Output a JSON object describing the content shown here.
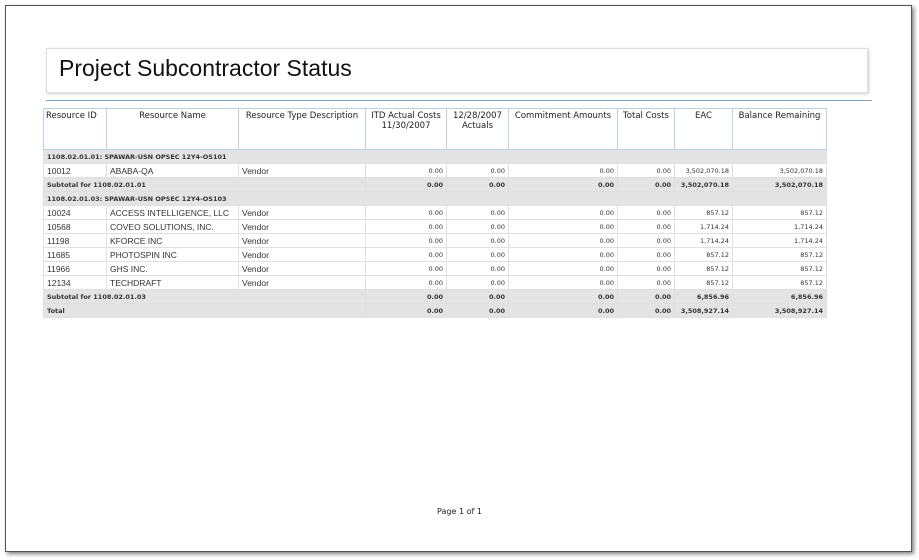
{
  "title": "Project Subcontractor Status",
  "columns": [
    "Resource ID",
    "Resource Name",
    "Resource Type Description",
    "ITD Actual Costs 11/30/2007",
    "12/28/2007 Actuals",
    "Commitment Amounts",
    "Total Costs",
    "EAC",
    "Balance Remaining"
  ],
  "groups": [
    {
      "label": "1108.02.01.01:  SPAWAR-USN OPSEC 12Y4-OS101",
      "rows": [
        [
          "10012",
          "ABABA-QA",
          "Vendor",
          "0.00",
          "0.00",
          "0.00",
          "0.00",
          "3,502,070.18",
          "3,502,070.18"
        ]
      ],
      "subtotal": [
        "Subtotal for 1108.02.01.01",
        "0.00",
        "0.00",
        "0.00",
        "0.00",
        "3,502,070.18",
        "3,502,070.18"
      ]
    },
    {
      "label": "1108.02.01.03:  SPAWAR-USN OPSEC 12Y4-OS103",
      "rows": [
        [
          "10024",
          "ACCESS INTELLIGENCE, LLC",
          "Vendor",
          "0.00",
          "0.00",
          "0.00",
          "0.00",
          "857.12",
          "857.12"
        ],
        [
          "10568",
          "COVEO SOLUTIONS, INC.",
          "Vendor",
          "0.00",
          "0.00",
          "0.00",
          "0.00",
          "1,714.24",
          "1,714.24"
        ],
        [
          "11198",
          "KFORCE INC",
          "Vendor",
          "0.00",
          "0.00",
          "0.00",
          "0.00",
          "1,714.24",
          "1,714.24"
        ],
        [
          "11685",
          "PHOTOSPIN INC",
          "Vendor",
          "0.00",
          "0.00",
          "0.00",
          "0.00",
          "857.12",
          "857.12"
        ],
        [
          "11966",
          "GHS INC.",
          "Vendor",
          "0.00",
          "0.00",
          "0.00",
          "0.00",
          "857.12",
          "857.12"
        ],
        [
          "12134",
          "TECHDRAFT",
          "Vendor",
          "0.00",
          "0.00",
          "0.00",
          "0.00",
          "857.12",
          "857.12"
        ]
      ],
      "subtotal": [
        "Subtotal for 1108.02.01.03",
        "0.00",
        "0.00",
        "0.00",
        "0.00",
        "6,856.96",
        "6,856.96"
      ]
    }
  ],
  "total": [
    "Total",
    "0.00",
    "0.00",
    "0.00",
    "0.00",
    "3,508,927.14",
    "3,508,927.14"
  ],
  "pager": "Page 1 of 1"
}
